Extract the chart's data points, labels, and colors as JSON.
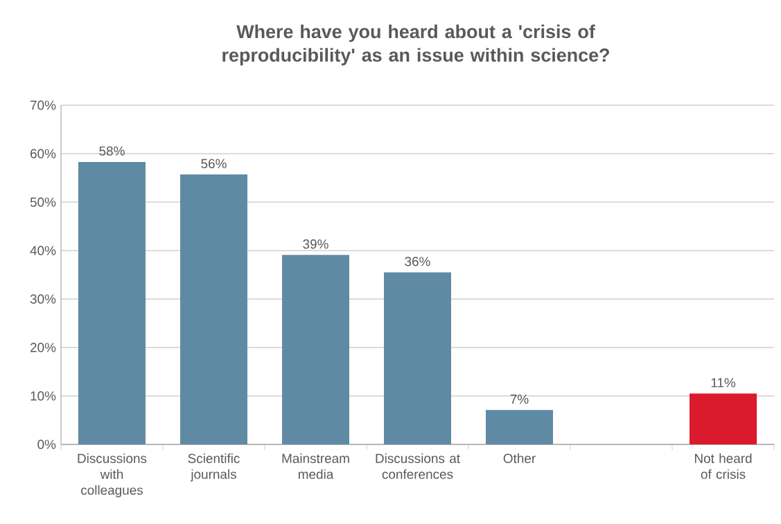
{
  "chart_data": {
    "type": "bar",
    "title": "Where have you heard about a 'crisis of reproducibility' as an issue within science?",
    "categories": [
      "Discussions with colleagues",
      "Scientific journals",
      "Mainstream media",
      "Discussions at conferences",
      "Other",
      null,
      "Not heard of crisis"
    ],
    "values": [
      58.3,
      55.7,
      39.1,
      35.5,
      7.1,
      null,
      10.5
    ],
    "value_labels": [
      "58%",
      "56%",
      "39%",
      "36%",
      "7%",
      null,
      "11%"
    ],
    "colors": [
      "#5f8aa3",
      "#5f8aa3",
      "#5f8aa3",
      "#5f8aa3",
      "#5f8aa3",
      "#5f8aa3",
      "#dc1a2e"
    ],
    "ylim": [
      0,
      70
    ],
    "yticks": [
      {
        "value": 0,
        "label": "0%"
      },
      {
        "value": 10,
        "label": "10%"
      },
      {
        "value": 20,
        "label": "20%"
      },
      {
        "value": 30,
        "label": "30%"
      },
      {
        "value": 40,
        "label": "40%"
      },
      {
        "value": 50,
        "label": "50%"
      },
      {
        "value": 60,
        "label": "60%"
      },
      {
        "value": 70,
        "label": "70%"
      }
    ],
    "grid": "y"
  }
}
